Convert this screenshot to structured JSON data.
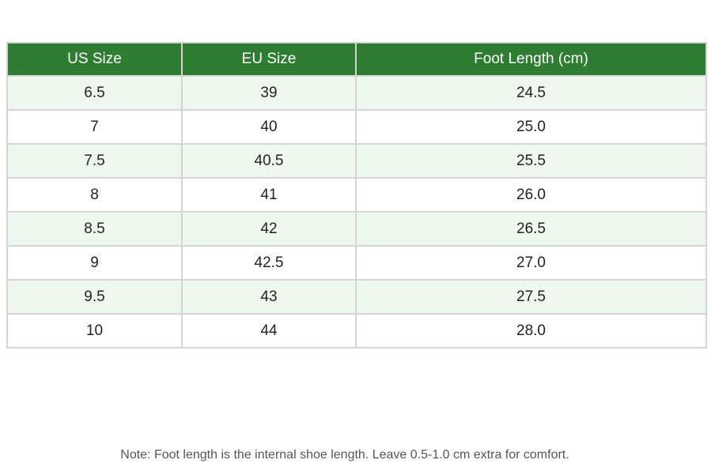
{
  "table": {
    "header": [
      "US Size",
      "EU Size",
      "Foot Length (cm)"
    ],
    "rows": [
      [
        "6.5",
        "39",
        "24.5"
      ],
      [
        "7",
        "40",
        "25.0"
      ],
      [
        "7.5",
        "40.5",
        "25.5"
      ],
      [
        "8",
        "41",
        "26.0"
      ],
      [
        "8.5",
        "42",
        "26.5"
      ],
      [
        "9",
        "42.5",
        "27.0"
      ],
      [
        "9.5",
        "43",
        "27.5"
      ],
      [
        "10",
        "44",
        "28.0"
      ]
    ]
  },
  "note": "Note: Foot length is the internal shoe length. Leave 0.5-1.0 cm extra for comfort."
}
